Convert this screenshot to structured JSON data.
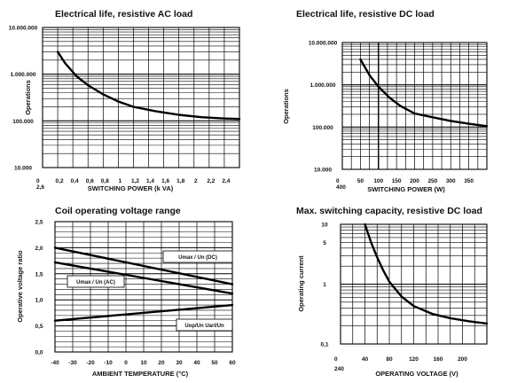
{
  "chart_data": [
    {
      "type": "line",
      "title": "Electrical life, resistive AC load",
      "xlabel": "SWITCHING POWER   (k VA)",
      "ylabel": "Operations",
      "y_scale": "log",
      "xlim": [
        0,
        2.6
      ],
      "ylim": [
        10000,
        10000000
      ],
      "x_ticks": [
        "0",
        "0,2",
        "0,4",
        "0,6",
        "0,8",
        "1",
        "1,2",
        "1,4",
        "1,6",
        "1,8",
        "2",
        "2,2",
        "2,4",
        "2,6"
      ],
      "y_ticks": [
        "10.000",
        "100.000",
        "1.000.000",
        "10.000.000"
      ],
      "series": [
        {
          "x": [
            0.2,
            0.3,
            0.45,
            0.6,
            0.8,
            1.0,
            1.2,
            1.5,
            1.8,
            2.1,
            2.4,
            2.6
          ],
          "y": [
            3000000,
            1700000,
            900000,
            580000,
            370000,
            260000,
            200000,
            160000,
            135000,
            120000,
            112000,
            110000
          ]
        }
      ]
    },
    {
      "type": "line",
      "title": "Electrical life, resistive DC load",
      "xlabel": "SWITCHING POWER   (W)",
      "ylabel": "Operations",
      "y_scale": "log",
      "xlim": [
        0,
        400
      ],
      "ylim": [
        10000,
        10000000
      ],
      "x_ticks": [
        "0",
        "50",
        "100",
        "150",
        "200",
        "250",
        "300",
        "350",
        "400"
      ],
      "y_ticks": [
        "10.000",
        "100.000",
        "1.000.000",
        "10.000.000"
      ],
      "series": [
        {
          "x": [
            50,
            75,
            100,
            130,
            160,
            200,
            250,
            300,
            350,
            400
          ],
          "y": [
            4000000,
            1700000,
            900000,
            500000,
            320000,
            210000,
            170000,
            140000,
            120000,
            105000
          ]
        }
      ]
    },
    {
      "type": "line",
      "title": "Coil operating voltage range",
      "xlabel": "AMBIENT TEMPERATURE (°C)",
      "ylabel": "Operative voltage ratio",
      "xlim": [
        -40,
        60
      ],
      "ylim": [
        0,
        2.5
      ],
      "x_ticks": [
        "-40",
        "-30",
        "-20",
        "-10",
        "0",
        "10",
        "20",
        "30",
        "40",
        "50",
        "60"
      ],
      "y_ticks": [
        "0,0",
        "0,5",
        "1,0",
        "1,5",
        "2,0",
        "2,5"
      ],
      "series": [
        {
          "name": "Umax / Un (DC)",
          "x": [
            -40,
            60
          ],
          "y": [
            2.0,
            1.3
          ]
        },
        {
          "name": "Umax / Un (AC)",
          "x": [
            -40,
            60
          ],
          "y": [
            1.72,
            1.12
          ]
        },
        {
          "name": "Uop/Un      Uarl/Un",
          "x": [
            -40,
            60
          ],
          "y": [
            0.6,
            0.9
          ]
        }
      ]
    },
    {
      "type": "line",
      "title": "Max. switching capacity, resistive DC load",
      "xlabel": "OPERATING VOLTAGE (V)",
      "ylabel": "Operating current",
      "y_scale": "log",
      "xlim": [
        0,
        240
      ],
      "ylim": [
        0.1,
        10
      ],
      "x_ticks": [
        "0",
        "40",
        "80",
        "120",
        "160",
        "200",
        "240"
      ],
      "y_ticks": [
        "0,1",
        "1",
        "5",
        "10"
      ],
      "series": [
        {
          "x": [
            40,
            50,
            60,
            70,
            80,
            100,
            120,
            150,
            180,
            210,
            240
          ],
          "y": [
            10,
            5,
            2.8,
            1.7,
            1.1,
            0.62,
            0.43,
            0.32,
            0.27,
            0.24,
            0.22
          ]
        }
      ]
    }
  ]
}
